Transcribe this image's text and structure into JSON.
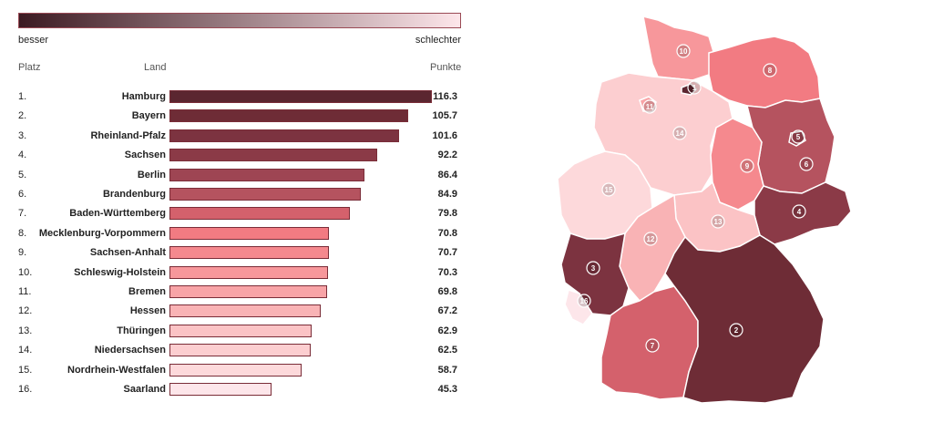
{
  "legend": {
    "low_label": "besser",
    "high_label": "schlechter",
    "color_start": "#3c1a22",
    "color_end": "#fde6ea"
  },
  "headers": {
    "rank": "Platz",
    "state": "Land",
    "points": "Punkte"
  },
  "chart_data": {
    "type": "bar",
    "orientation": "horizontal",
    "categories": [
      "Hamburg",
      "Bayern",
      "Rheinland-Pfalz",
      "Sachsen",
      "Berlin",
      "Brandenburg",
      "Baden-Württemberg",
      "Mecklenburg-Vorpommern",
      "Sachsen-Anhalt",
      "Schleswig-Holstein",
      "Bremen",
      "Hessen",
      "Thüringen",
      "Niedersachsen",
      "Nordrhein-Westfalen",
      "Saarland"
    ],
    "ranks": [
      "1.",
      "2.",
      "3.",
      "4.",
      "5.",
      "6.",
      "7.",
      "8.",
      "9.",
      "10.",
      "11.",
      "12.",
      "13.",
      "14.",
      "15.",
      "16."
    ],
    "values": [
      116.3,
      105.7,
      101.6,
      92.2,
      86.4,
      84.9,
      79.8,
      70.8,
      70.7,
      70.3,
      69.8,
      67.2,
      62.9,
      62.5,
      58.7,
      45.3
    ],
    "value_labels": [
      "116.3",
      "105.7",
      "101.6",
      "92.2",
      "86.4",
      "84.9",
      "79.8",
      "70.8",
      "70.7",
      "70.3",
      "69.8",
      "67.2",
      "62.9",
      "62.5",
      "58.7",
      "45.3"
    ],
    "colors": [
      "#5b2630",
      "#6e2c36",
      "#7c3340",
      "#8b3a47",
      "#9e4553",
      "#b5535f",
      "#d4616c",
      "#f27b82",
      "#f5898e",
      "#f7979b",
      "#f8a4a7",
      "#f9b3b5",
      "#fbc3c5",
      "#fcced0",
      "#fdd9db",
      "#fde6ea"
    ],
    "xlim": [
      0,
      116.3
    ]
  },
  "map": {
    "badges": [
      "1",
      "2",
      "3",
      "4",
      "5",
      "6",
      "7",
      "8",
      "9",
      "10",
      "11",
      "12",
      "13",
      "14",
      "15",
      "16"
    ]
  }
}
